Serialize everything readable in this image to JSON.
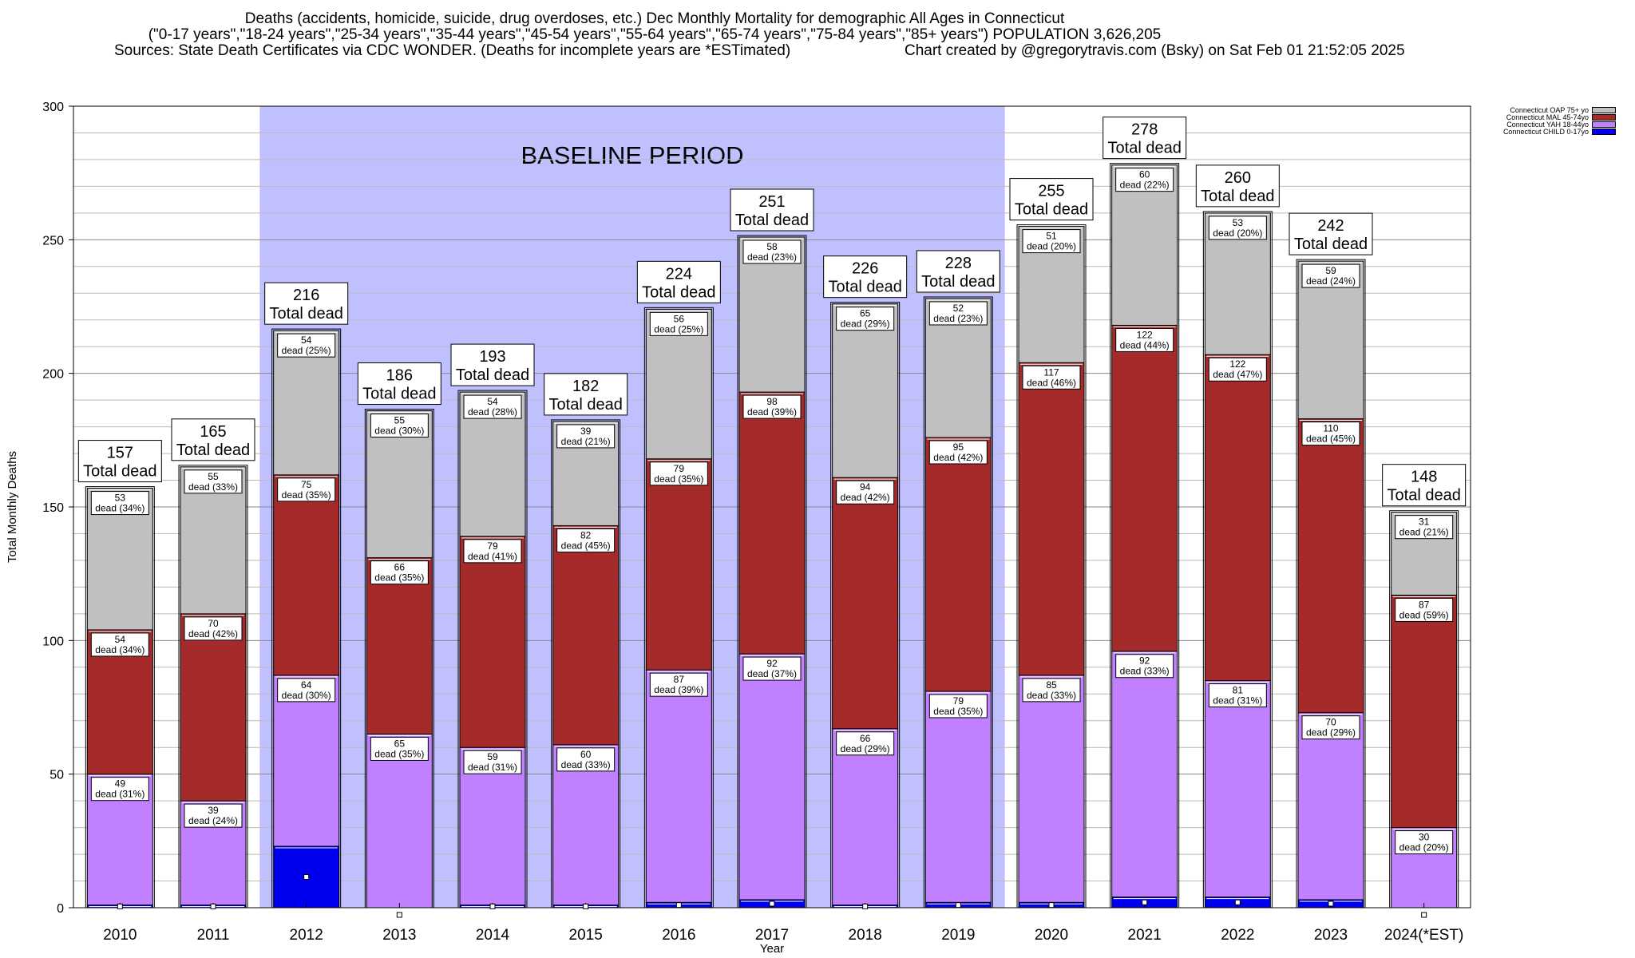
{
  "header": {
    "line1": "Deaths (accidents, homicide, suicide, drug overdoses, etc.) Dec Monthly Mortality for demographic All Ages in Connecticut",
    "line2": "(\"0-17 years\",\"18-24 years\",\"25-34 years\",\"35-44 years\",\"45-54 years\",\"55-64 years\",\"65-74 years\",\"75-84 years\",\"85+ years\") POPULATION 3,626,205",
    "line3_left": "Sources: State Death Certificates via CDC WONDER. (Deaths for incomplete years are *ESTimated)",
    "line3_right": "Chart created by @gregorytravis.com (Bsky) on Sat Feb 01 21:52:05 2025"
  },
  "chart_data": {
    "type": "bar",
    "stacked": true,
    "title": "Deaths (accidents, homicide, suicide, drug overdoses, etc.) Dec Monthly Mortality for demographic All Ages in Connecticut",
    "xlabel": "Year",
    "ylabel": "Total Monthly Deaths",
    "ylim": [
      0,
      300
    ],
    "yticks": [
      0,
      50,
      100,
      150,
      200,
      250,
      300
    ],
    "grid": true,
    "legend_position": "top-right",
    "categories": [
      "2010",
      "2011",
      "2012",
      "2013",
      "2014",
      "2015",
      "2016",
      "2017",
      "2018",
      "2019",
      "2020",
      "2021",
      "2022",
      "2023",
      "2024(*EST)"
    ],
    "baseline": {
      "label": "BASELINE PERIOD",
      "from": "2012",
      "to": "2019",
      "color": "#c0c0ff"
    },
    "total_label": "Total dead",
    "segment_label": "dead",
    "totals": [
      157,
      165,
      216,
      186,
      193,
      182,
      224,
      251,
      226,
      228,
      255,
      278,
      260,
      242,
      148
    ],
    "series": [
      {
        "name": "Connecticut CHILD 0-17yo",
        "color": "#0000ee",
        "values": [
          1,
          1,
          23,
          0,
          1,
          1,
          2,
          3,
          1,
          2,
          2,
          4,
          4,
          3,
          0
        ],
        "labels": [
          null,
          null,
          null,
          null,
          null,
          null,
          null,
          null,
          null,
          null,
          null,
          null,
          null,
          null,
          null
        ]
      },
      {
        "name": "Connecticut YAH 18-44yo",
        "color": "#c080ff",
        "values": [
          49,
          39,
          64,
          65,
          59,
          60,
          87,
          92,
          66,
          79,
          85,
          92,
          81,
          70,
          30
        ],
        "labels": [
          "49",
          "39",
          "64",
          "65",
          "59",
          "60",
          "87",
          "92",
          "66",
          "79",
          "85",
          "92",
          "81",
          "70",
          "30"
        ],
        "pcts": [
          "(31%)",
          "(24%)",
          "(30%)",
          "(35%)",
          "(31%)",
          "(33%)",
          "(39%)",
          "(37%)",
          "(29%)",
          "(35%)",
          "(33%)",
          "(33%)",
          "(31%)",
          "(29%)",
          "(20%)"
        ]
      },
      {
        "name": "Connecticut MAL 45-74yo",
        "color": "#a52a2a",
        "values": [
          54,
          70,
          75,
          66,
          79,
          82,
          79,
          98,
          94,
          95,
          117,
          122,
          122,
          110,
          87
        ],
        "labels": [
          "54",
          "70",
          "75",
          "66",
          "79",
          "82",
          "79",
          "98",
          "94",
          "95",
          "117",
          "122",
          "122",
          "110",
          "87"
        ],
        "pcts": [
          "(34%)",
          "(42%)",
          "(35%)",
          "(35%)",
          "(41%)",
          "(45%)",
          "(35%)",
          "(39%)",
          "(42%)",
          "(42%)",
          "(46%)",
          "(44%)",
          "(47%)",
          "(45%)",
          "(59%)"
        ]
      },
      {
        "name": "Connecticut OAP 75+ yo",
        "color": "#c0c0c0",
        "values": [
          53,
          55,
          54,
          55,
          54,
          39,
          56,
          58,
          65,
          52,
          51,
          60,
          53,
          59,
          31
        ],
        "labels": [
          "53",
          "55",
          "54",
          "55",
          "54",
          "39",
          "56",
          "58",
          "65",
          "52",
          "51",
          "60",
          "53",
          "59",
          "31"
        ],
        "pcts": [
          "(34%)",
          "(33%)",
          "(25%)",
          "(30%)",
          "(28%)",
          "(21%)",
          "(25%)",
          "(23%)",
          "(29%)",
          "(23%)",
          "(20%)",
          "(22%)",
          "(20%)",
          "(24%)",
          "(21%)"
        ]
      }
    ],
    "legend": [
      {
        "name": "Connecticut OAP 75+ yo",
        "color": "#c0c0c0"
      },
      {
        "name": "Connecticut MAL 45-74yo",
        "color": "#a52a2a"
      },
      {
        "name": "Connecticut YAH 18-44yo",
        "color": "#c080ff"
      },
      {
        "name": "Connecticut CHILD 0-17yo",
        "color": "#0000ee"
      }
    ]
  }
}
